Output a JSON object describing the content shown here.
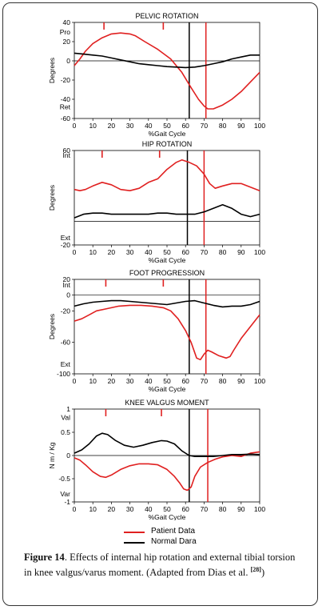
{
  "chart_data": [
    {
      "type": "line",
      "title": "PELVIC ROTATION",
      "xlabel": "%Gait Cycle",
      "ylabel": "Degrees",
      "xlim": [
        0,
        100
      ],
      "ylim": [
        -60,
        40
      ],
      "yticks": [
        "40",
        "20",
        "0",
        "-20",
        "-40",
        "-60"
      ],
      "xticks": [
        "0",
        "10",
        "20",
        "30",
        "40",
        "50",
        "60",
        "70",
        "80",
        "90",
        "100"
      ],
      "y_annotations": [
        {
          "text": "Pro",
          "y": 30
        },
        {
          "text": "Ret",
          "y": -48
        }
      ],
      "zero_line": true,
      "vlines": [
        {
          "x": 62,
          "color": "#000000"
        },
        {
          "x": 71,
          "color": "#e02020"
        }
      ],
      "top_ticks": [
        16,
        48
      ],
      "series": [
        {
          "name": "Patient Data",
          "color": "#e02020",
          "x": [
            0,
            3,
            6,
            10,
            15,
            20,
            25,
            30,
            33,
            38,
            45,
            52,
            58,
            63,
            67,
            70,
            72,
            75,
            80,
            85,
            90,
            95,
            100
          ],
          "y": [
            -5,
            2,
            10,
            18,
            24,
            28,
            29,
            28,
            26,
            20,
            12,
            2,
            -12,
            -28,
            -40,
            -47,
            -50,
            -50,
            -46,
            -40,
            -32,
            -22,
            -12
          ]
        },
        {
          "name": "Normal Dara",
          "color": "#000000",
          "x": [
            0,
            5,
            10,
            15,
            20,
            25,
            30,
            35,
            40,
            45,
            50,
            55,
            60,
            65,
            70,
            75,
            80,
            85,
            90,
            95,
            100
          ],
          "y": [
            8,
            7,
            6,
            5,
            3,
            1,
            -1,
            -3,
            -4,
            -5,
            -6,
            -6.5,
            -7,
            -6.5,
            -5,
            -3,
            -1,
            2,
            4,
            6,
            6
          ]
        }
      ]
    },
    {
      "type": "line",
      "title": "HIP ROTATION",
      "xlabel": "%Gait Cycle",
      "ylabel": "Degrees",
      "xlim": [
        0,
        100
      ],
      "ylim": [
        -20,
        60
      ],
      "yticks": [
        "60",
        "-20"
      ],
      "xticks": [
        "0",
        "10",
        "20",
        "30",
        "40",
        "50",
        "60",
        "70",
        "80",
        "90",
        "100"
      ],
      "y_annotations": [
        {
          "text": "Int",
          "y": 56
        },
        {
          "text": "Ext",
          "y": -14
        }
      ],
      "zero_line": true,
      "vlines": [
        {
          "x": 61,
          "color": "#000000"
        },
        {
          "x": 70,
          "color": "#e02020"
        }
      ],
      "top_ticks": [
        15,
        46
      ],
      "series": [
        {
          "name": "Patient Data",
          "color": "#e02020",
          "x": [
            0,
            3,
            6,
            10,
            15,
            20,
            25,
            30,
            35,
            40,
            45,
            50,
            55,
            58,
            62,
            66,
            70,
            73,
            76,
            80,
            85,
            90,
            95,
            100
          ],
          "y": [
            27,
            26,
            27,
            30,
            33,
            31,
            27,
            26,
            28,
            33,
            36,
            44,
            50,
            52,
            50,
            47,
            40,
            32,
            28,
            30,
            32,
            32,
            29,
            26
          ]
        },
        {
          "name": "Normal Dara",
          "color": "#000000",
          "x": [
            0,
            5,
            10,
            15,
            20,
            25,
            30,
            35,
            40,
            45,
            50,
            55,
            60,
            65,
            70,
            75,
            80,
            85,
            90,
            95,
            100
          ],
          "y": [
            3,
            6,
            7,
            7,
            6,
            6,
            6,
            6,
            6,
            7,
            7,
            6,
            6,
            6,
            8,
            11,
            14,
            11,
            6,
            4,
            6
          ]
        }
      ]
    },
    {
      "type": "line",
      "title": "FOOT PROGRESSION",
      "xlabel": "%Gait Cycle",
      "ylabel": "Degrees",
      "xlim": [
        0,
        100
      ],
      "ylim": [
        -100,
        20
      ],
      "yticks": [
        "20",
        "0",
        "-20",
        "-60",
        "-100"
      ],
      "xticks": [
        "0",
        "10",
        "20",
        "30",
        "40",
        "50",
        "60",
        "70",
        "80",
        "90",
        "100"
      ],
      "y_annotations": [
        {
          "text": "Int",
          "y": 13
        },
        {
          "text": "Ext",
          "y": -88
        }
      ],
      "zero_line": true,
      "vlines": [
        {
          "x": 62,
          "color": "#000000"
        },
        {
          "x": 71,
          "color": "#e02020"
        }
      ],
      "top_ticks": [
        17,
        48
      ],
      "series": [
        {
          "name": "Patient Data",
          "color": "#e02020",
          "x": [
            0,
            4,
            8,
            12,
            18,
            24,
            30,
            36,
            42,
            48,
            52,
            56,
            60,
            63,
            66,
            68,
            70,
            72,
            74,
            78,
            82,
            84,
            86,
            90,
            95,
            100
          ],
          "y": [
            -33,
            -30,
            -25,
            -20,
            -17,
            -14,
            -13,
            -13,
            -14,
            -16,
            -20,
            -30,
            -45,
            -60,
            -80,
            -82,
            -75,
            -70,
            -72,
            -77,
            -80,
            -78,
            -70,
            -55,
            -40,
            -25
          ]
        },
        {
          "name": "Normal Dara",
          "color": "#000000",
          "x": [
            0,
            5,
            10,
            15,
            20,
            25,
            30,
            35,
            40,
            45,
            50,
            55,
            60,
            65,
            70,
            75,
            80,
            85,
            90,
            95,
            100
          ],
          "y": [
            -14,
            -11,
            -9,
            -8,
            -7,
            -7,
            -8,
            -9,
            -10,
            -11,
            -12,
            -10,
            -8,
            -7,
            -10,
            -13,
            -15,
            -14,
            -14,
            -12,
            -8
          ]
        }
      ]
    },
    {
      "type": "line",
      "title": "KNEE VALGUS MOMENT",
      "xlabel": "%Gait Cycle",
      "ylabel": "N m / Kg",
      "xlim": [
        0,
        100
      ],
      "ylim": [
        -1,
        1
      ],
      "yticks": [
        "1",
        "0.5",
        "0",
        "-0.5",
        "-1"
      ],
      "xticks": [
        "0",
        "10",
        "20",
        "30",
        "40",
        "50",
        "60",
        "70",
        "80",
        "90",
        "100"
      ],
      "y_annotations": [
        {
          "text": "Val",
          "y": 0.82
        },
        {
          "text": "Var",
          "y": -0.83
        }
      ],
      "zero_line": true,
      "vlines": [
        {
          "x": 62,
          "color": "#000000"
        },
        {
          "x": 72,
          "color": "#e02020"
        }
      ],
      "top_ticks": [
        17,
        47
      ],
      "series": [
        {
          "name": "Patient Data",
          "color": "#e02020",
          "x": [
            0,
            3,
            6,
            10,
            14,
            17,
            20,
            25,
            30,
            35,
            40,
            45,
            50,
            54,
            57,
            59,
            61,
            63,
            65,
            68,
            72,
            76,
            80,
            85,
            90,
            95,
            100
          ],
          "y": [
            -0.05,
            -0.1,
            -0.2,
            -0.35,
            -0.45,
            -0.47,
            -0.42,
            -0.3,
            -0.22,
            -0.18,
            -0.18,
            -0.2,
            -0.3,
            -0.45,
            -0.6,
            -0.72,
            -0.75,
            -0.68,
            -0.45,
            -0.25,
            -0.15,
            -0.08,
            -0.03,
            0,
            -0.02,
            0.05,
            0.08
          ]
        },
        {
          "name": "Normal Dara",
          "color": "#000000",
          "x": [
            0,
            4,
            8,
            12,
            15,
            18,
            22,
            27,
            32,
            37,
            42,
            47,
            50,
            54,
            58,
            62,
            65,
            70,
            75,
            80,
            85,
            90,
            95,
            100
          ],
          "y": [
            0.05,
            0.12,
            0.25,
            0.42,
            0.48,
            0.45,
            0.33,
            0.22,
            0.18,
            0.22,
            0.28,
            0.32,
            0.31,
            0.25,
            0.1,
            0,
            -0.02,
            -0.02,
            -0.02,
            0,
            0.02,
            0.02,
            0.03,
            0.02
          ]
        }
      ]
    }
  ],
  "legend": [
    {
      "label": "Patient Data",
      "color": "#e02020"
    },
    {
      "label": "Normal Dara",
      "color": "#000000"
    }
  ],
  "caption": {
    "figure_label": "Figure 14",
    "text": ". Effects of internal hip rotation and external tibial torsion in knee valgus/varus moment. (Adapted from Dias et al.",
    "ref": "[28]",
    "end": ")"
  }
}
